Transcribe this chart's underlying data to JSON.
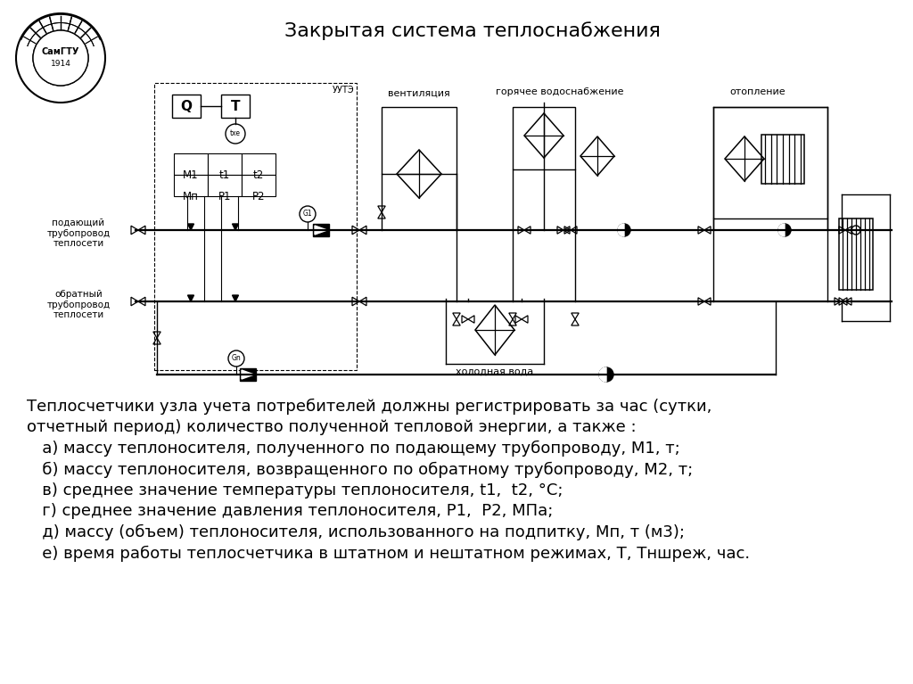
{
  "title": "Закрытая система теплоснабжения",
  "bg_color": "#ffffff",
  "text_color": "#000000",
  "diagram_text": {
    "uute": "УУТЭ",
    "Q": "Q",
    "T": "T",
    "M1": "M1",
    "t1": "t1",
    "t2": "t2",
    "Mn": "Мп",
    "P1": "P1",
    "P2": "P2",
    "ventilation": "вентиляция",
    "hot_water": "горячее водоснабжение",
    "heating": "отопление",
    "cold_water": "холодная вода",
    "supply_pipe": "подающий\nтрубопровод\nтеплосети",
    "return_pipe": "обратный\nтрубопровод\nтеплосети",
    "G1": "G1",
    "Gn": "Gn"
  },
  "body_lines": [
    "Теплосчетчики узла учета потребителей должны регистрировать за час (сутки,",
    "отчетный период) количество полученной тепловой энергии, а также :",
    "   а) массу теплоносителя, полученного по подающему трубопроводу, М1, т;",
    "   б) массу теплоносителя, возвращенного по обратному трубопроводу, М2, т;",
    "   в) среднее значение температуры теплоносителя, t1,  t2, °С;",
    "   г) среднее значение давления теплоносителя, Р1,  Р2, МПа;",
    "   д) массу (объем) теплоносителя, использованного на подпитку, Мп, т (м3);",
    "   е) время работы теплосчетчика в штатном и нештатном режимах, Т, Тншреж, час."
  ],
  "font_size_body": 13,
  "font_size_title": 16,
  "font_size_diagram": 8
}
